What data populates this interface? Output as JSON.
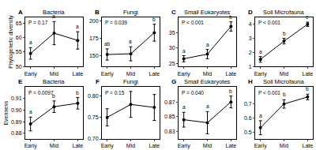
{
  "chart_data": [
    {
      "type": "line",
      "panel": "A",
      "title": "Bacteria",
      "p_text": "P = 0.17",
      "ylabel": "Phylogenetic diversity",
      "categories": [
        "Early",
        "Mid",
        "Late"
      ],
      "values": [
        54.5,
        61.5,
        59
      ],
      "error": [
        2,
        4,
        3
      ],
      "letters": [
        "a",
        "a",
        "a"
      ],
      "ylim": [
        50,
        67
      ],
      "yticks": [
        50,
        55,
        60,
        65
      ],
      "color": "#000000",
      "marker": "circle"
    },
    {
      "type": "line",
      "panel": "B",
      "title": "Fungi",
      "p_text": "P = 0.039",
      "categories": [
        "Early",
        "Mid",
        "Late"
      ],
      "values": [
        152,
        153,
        183
      ],
      "error": [
        8,
        10,
        12
      ],
      "letters": [
        "ab",
        "a",
        "b"
      ],
      "ylim": [
        135,
        205
      ],
      "yticks": [
        150,
        175,
        200
      ],
      "color": "#000000",
      "marker": "circle"
    },
    {
      "type": "line",
      "panel": "C",
      "title": "Small Eukaryotes",
      "p_text": "P < 0.001",
      "categories": [
        "Early",
        "Mid",
        "Late"
      ],
      "values": [
        26.5,
        28,
        37
      ],
      "error": [
        1,
        1.5,
        1.5
      ],
      "letters": [
        "a",
        "a",
        "b"
      ],
      "ylim": [
        24,
        40
      ],
      "yticks": [
        25,
        30,
        35
      ],
      "color": "#000000",
      "marker": "circle"
    },
    {
      "type": "line",
      "panel": "D",
      "title": "Soil Microfauna",
      "p_text": "P < 0.001",
      "categories": [
        "Early",
        "Mid",
        "Late"
      ],
      "values": [
        1.5,
        2.8,
        4.0
      ],
      "error": [
        0.2,
        0.2,
        0.15
      ],
      "letters": [
        "a",
        "b",
        "c"
      ],
      "ylim": [
        1,
        4.5
      ],
      "yticks": [
        1,
        2,
        3,
        4
      ],
      "color": "#000000",
      "marker": "circle"
    },
    {
      "type": "line",
      "panel": "E",
      "title": "Bacteria",
      "p_text": "P = 0.0097",
      "ylabel": "Evenness",
      "categories": [
        "Early",
        "Mid",
        "Late"
      ],
      "values": [
        0.888,
        0.903,
        0.906
      ],
      "error": [
        0.006,
        0.005,
        0.005
      ],
      "letters": [
        "a",
        "b",
        "b"
      ],
      "ylim": [
        0.875,
        0.92
      ],
      "yticks": [
        0.88,
        0.89,
        {
          "value": 0.9,
          "label": "0.90"
        },
        0.91
      ],
      "color": "#000000",
      "marker": "circle"
    },
    {
      "type": "line",
      "panel": "F",
      "title": "Fungi",
      "p_text": "P = 0.15",
      "categories": [
        "Early",
        "Mid",
        "Late"
      ],
      "values": [
        0.75,
        0.78,
        0.773
      ],
      "error": [
        0.02,
        0.03,
        0.03
      ],
      "ylim": [
        0.7,
        0.82
      ],
      "yticks": [
        {
          "value": 0.7,
          "label": "0.70"
        },
        0.75,
        {
          "value": 0.8,
          "label": "0.80"
        }
      ],
      "color": "#000000",
      "marker": "circle"
    },
    {
      "type": "line",
      "panel": "G",
      "title": "Small Eukaryotes",
      "p_text": "P = 0.040",
      "categories": [
        "Early",
        "Mid",
        "Late"
      ],
      "values": [
        0.846,
        0.842,
        0.87
      ],
      "error": [
        0.01,
        0.015,
        0.008
      ],
      "letters": [
        "a",
        "a",
        "b"
      ],
      "ylim": [
        0.82,
        0.89
      ],
      "yticks": [
        0.83,
        0.85,
        0.87
      ],
      "color": "#000000",
      "marker": "circle"
    },
    {
      "type": "line",
      "panel": "H",
      "title": "Soil Microfauna",
      "p_text": "P < 0.001",
      "categories": [
        "Early",
        "Mid",
        "Late"
      ],
      "values": [
        0.53,
        0.7,
        0.75
      ],
      "error": [
        0.05,
        0.03,
        0.02
      ],
      "letters": [
        "a",
        "b",
        "b"
      ],
      "ylim": [
        0.45,
        0.82
      ],
      "yticks": [
        0.5,
        0.6,
        0.7
      ],
      "color": "#000000",
      "marker": "circle"
    }
  ]
}
